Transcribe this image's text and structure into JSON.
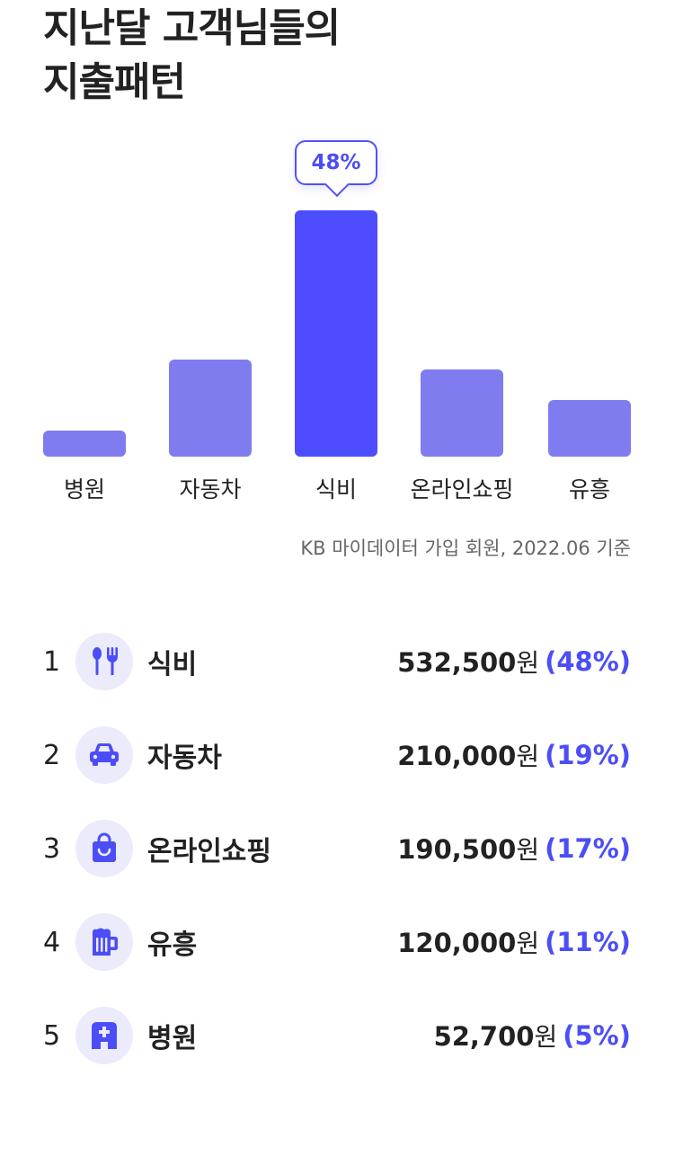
{
  "title": {
    "line1": "지난달 고객님들의",
    "line2": "지출패턴"
  },
  "chart_data": {
    "type": "bar",
    "categories": [
      "병원",
      "자동차",
      "식비",
      "온라인쇼핑",
      "유흥"
    ],
    "values": [
      5,
      19,
      48,
      17,
      11
    ],
    "unit": "%",
    "highlight_index": 2,
    "highlight_label": "48%",
    "ylim": [
      0,
      48
    ],
    "grid": false
  },
  "colors": {
    "bar": "#7f7cf0",
    "bar_highlight": "#4d4dff",
    "accent": "#4b4ef6",
    "icon_bg": "#ebebfc"
  },
  "source": "KB 마이데이터 가입 회원, 2022.06 기준",
  "ranking": [
    {
      "rank": "1",
      "icon": "fork-knife-icon",
      "name": "식비",
      "amount": "532,500",
      "unit": "원",
      "pct": "(48%)"
    },
    {
      "rank": "2",
      "icon": "car-icon",
      "name": "자동차",
      "amount": "210,000",
      "unit": "원",
      "pct": "(19%)"
    },
    {
      "rank": "3",
      "icon": "shopping-bag-icon",
      "name": "온라인쇼핑",
      "amount": "190,500",
      "unit": "원",
      "pct": "(17%)"
    },
    {
      "rank": "4",
      "icon": "beer-mug-icon",
      "name": "유흥",
      "amount": "120,000",
      "unit": "원",
      "pct": "(11%)"
    },
    {
      "rank": "5",
      "icon": "hospital-icon",
      "name": "병원",
      "amount": "52,700",
      "unit": "원",
      "pct": "(5%)"
    }
  ]
}
